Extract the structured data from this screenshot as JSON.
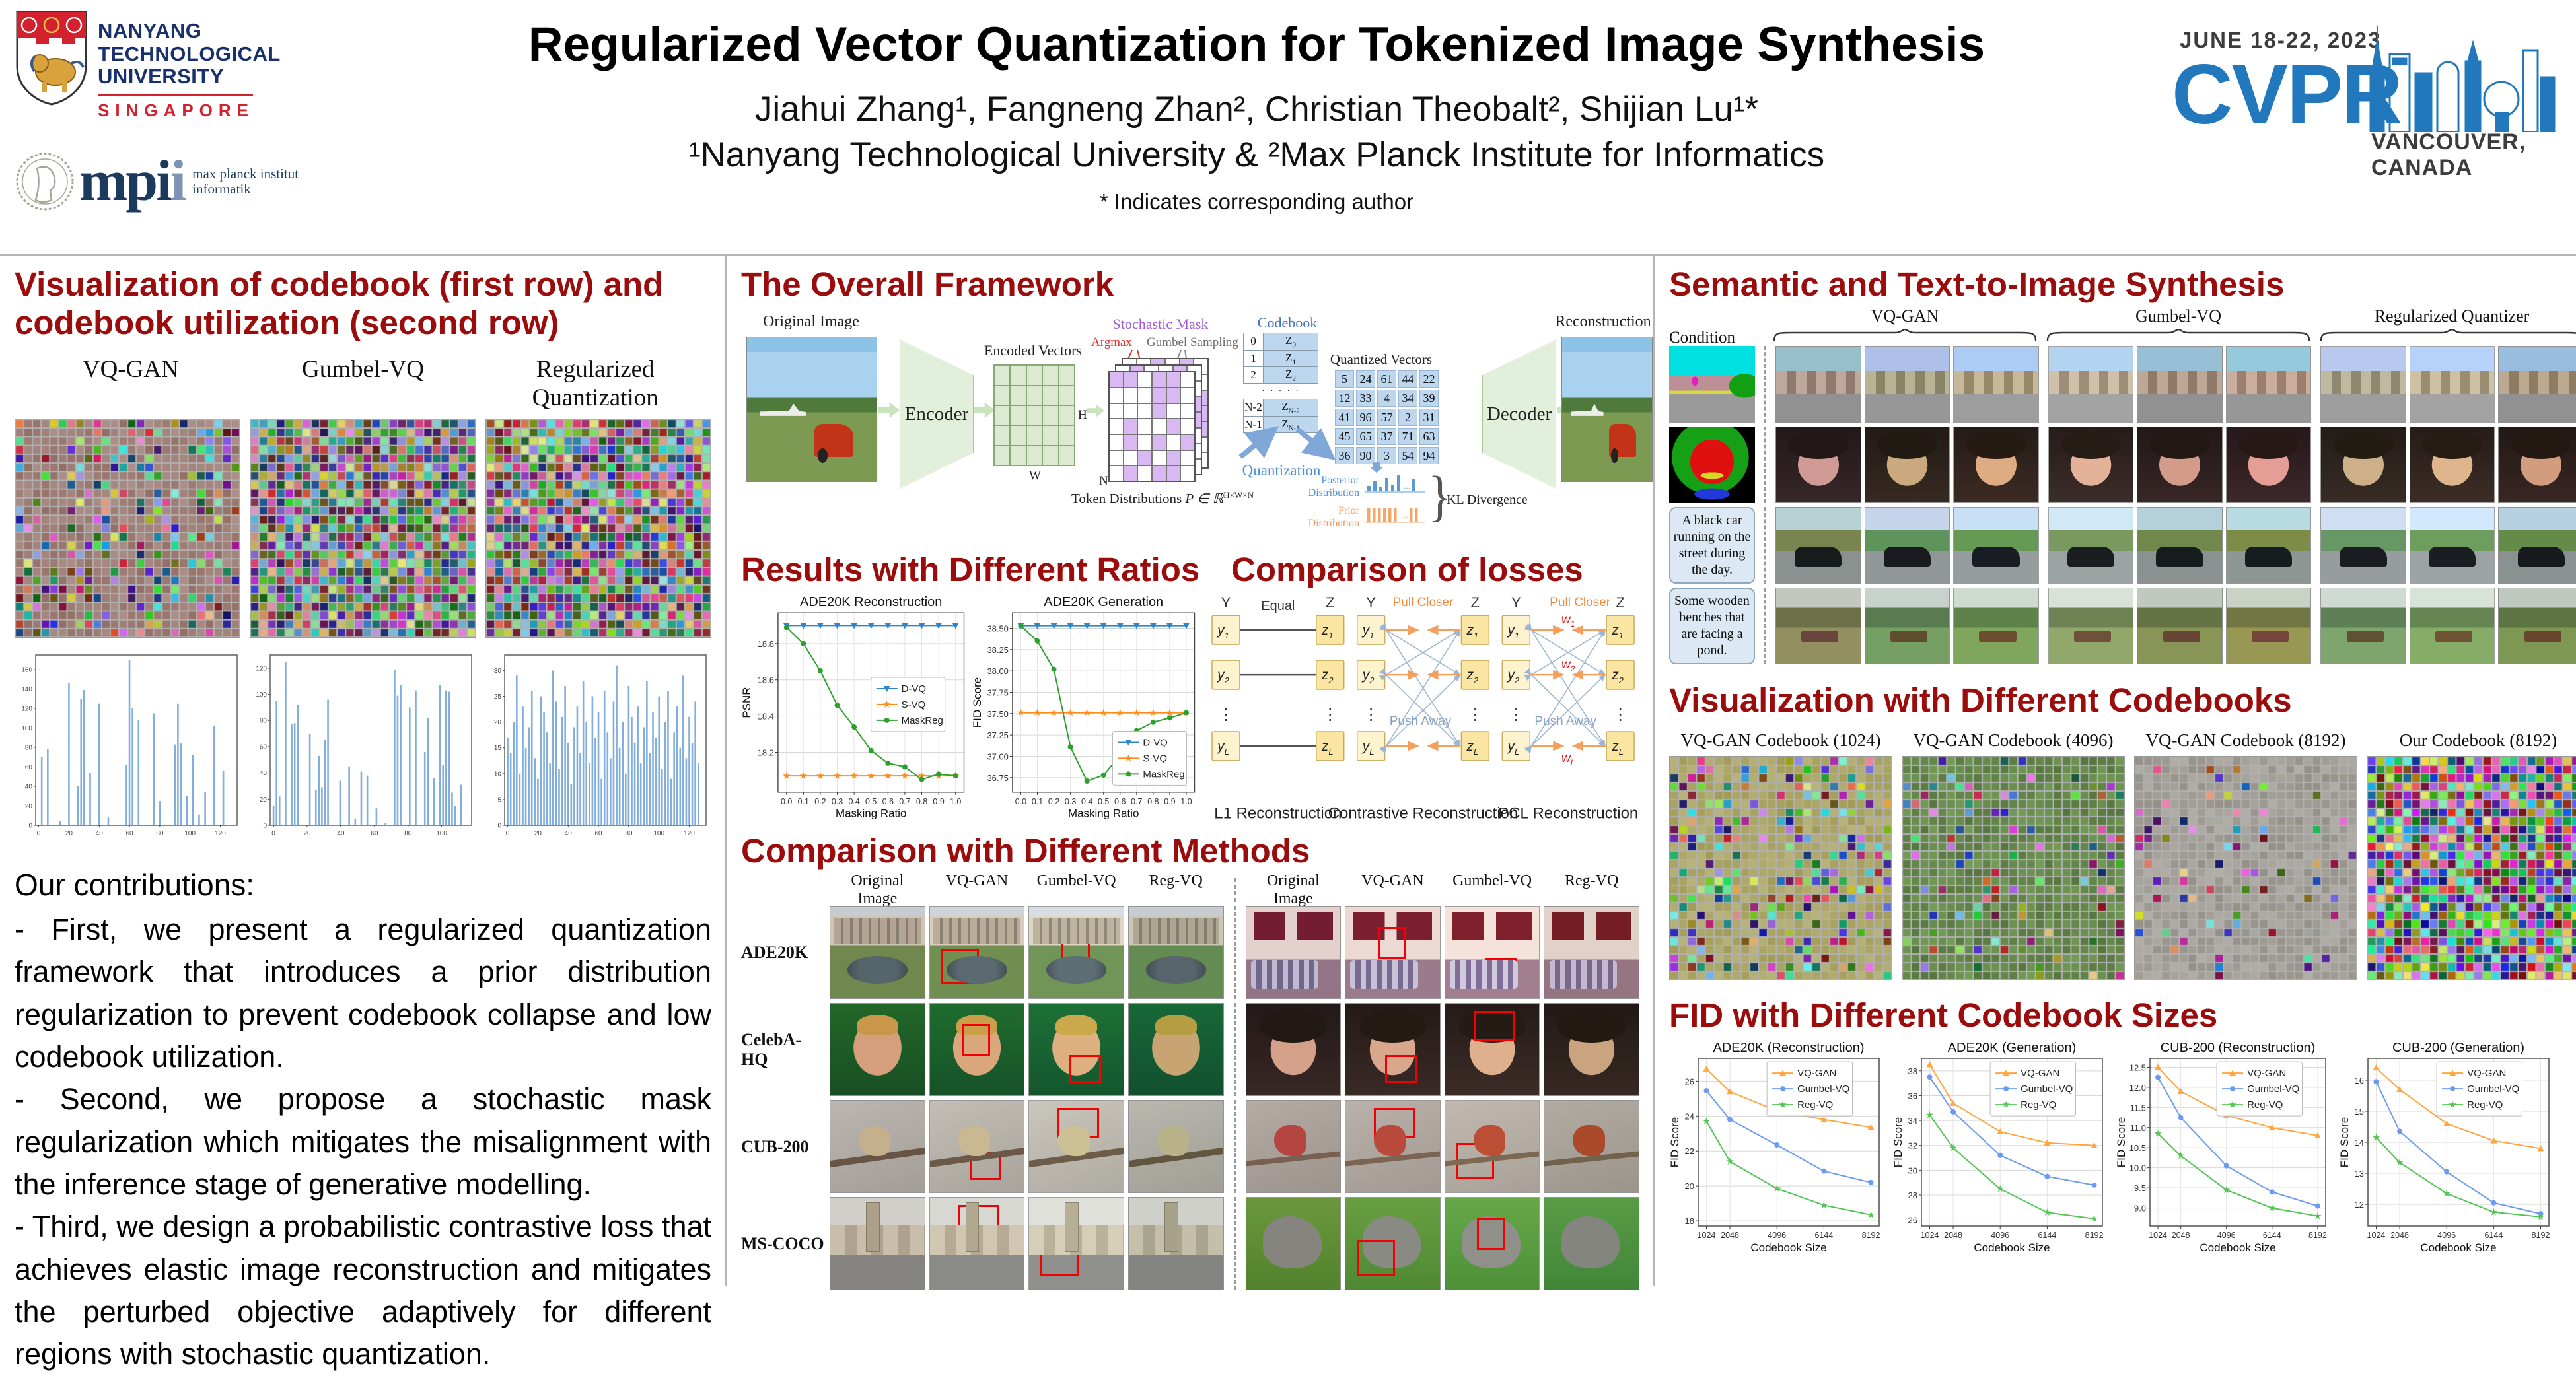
{
  "header": {
    "title": "Regularized Vector Quantization for Tokenized Image Synthesis",
    "authors": "Jiahui Zhang¹,  Fangneng Zhan²,  Christian Theobalt²,  Shijian Lu¹*",
    "affiliations": "¹Nanyang Technological University   &   ²Max Planck Institute for Informatics",
    "note": "* Indicates corresponding author",
    "ntu": {
      "lines": [
        "NANYANG",
        "TECHNOLOGICAL",
        "UNIVERSITY"
      ],
      "city": "SINGAPORE"
    },
    "mpi": {
      "abbr_main": "mpi",
      "abbr_lite": "i",
      "line1": "max planck institut",
      "line2": "informatik"
    },
    "cvpr": {
      "date": "JUNE 18-22, 2023",
      "name": "CVPR",
      "location": "VANCOUVER, CANADA"
    }
  },
  "left": {
    "heading": "Visualization of codebook (first row) and codebook utilization (second row)",
    "mosaic_labels": [
      "VQ-GAN",
      "Gumbel-VQ",
      "Regularized Quantization"
    ],
    "contributions_title": "Our contributions:",
    "contributions": [
      "- First, we present a regularized quantization framework that introduces a prior distribution regularization to prevent codebook collapse and low codebook utilization.",
      "- Second, we propose a stochastic mask regularization which mitigates the misalignment with the inference stage of generative modelling.",
      "- Third, we design a probabilistic contrastive loss that achieves elastic image reconstruction and mitigates the perturbed objective adaptively for different regions with stochastic quantization."
    ]
  },
  "framework": {
    "heading": "The Overall Framework",
    "original_label": "Original Image",
    "encoder_label": "Encoder",
    "encoded_label": "Encoded Vectors",
    "w_label": "W",
    "h_label": "H",
    "n_label": "N",
    "mask_label": "Stochastic Mask",
    "argmax_label": "Argmax",
    "gumbel_label": "Gumbel Sampling",
    "token_label": "Token Distributions",
    "token_formula": "P ∈ ℝ",
    "token_sup": "H×W×N",
    "codebook_title": "Codebook",
    "codebook_rows": [
      {
        "i": "0",
        "s": "0"
      },
      {
        "i": "1",
        "s": "1"
      },
      {
        "i": "2",
        "s": "2"
      },
      {
        "i": "N-2",
        "s": "N-2"
      },
      {
        "i": "N-1",
        "s": "N-1"
      }
    ],
    "codebook_dots": "· · · · ·",
    "z_base": "Z",
    "quantization_label": "Quantization",
    "quantized_label": "Quantized Vectors",
    "matrix": [
      [
        5,
        24,
        61,
        44,
        22
      ],
      [
        12,
        33,
        4,
        34,
        39
      ],
      [
        41,
        96,
        57,
        2,
        31
      ],
      [
        45,
        65,
        37,
        71,
        63
      ],
      [
        36,
        90,
        3,
        54,
        94
      ]
    ],
    "posterior_label": "Posterior Distribution",
    "prior_label": "Prior Distribution",
    "kl_label": "KL Divergence",
    "decoder_label": "Decoder",
    "recon_label": "Reconstruction"
  },
  "ratios": {
    "heading": "Results with Different Ratios"
  },
  "losses": {
    "heading": "Comparison of losses",
    "y_header": "Y",
    "z_header": "Z",
    "node_base_y": "y",
    "node_base_z": "z",
    "node_subs": [
      "1",
      "2",
      "⋮",
      "L"
    ],
    "diagrams": [
      {
        "caption": "L1 Reconstruction",
        "top": "Equal"
      },
      {
        "caption": "Contrastive Reconstruction",
        "pull": "Pull Closer",
        "push": "Push Away"
      },
      {
        "caption": "PCL Reconstruction",
        "pull": "Pull Closer",
        "push": "Push Away",
        "weight_base": "w",
        "weight_subs": [
          "1",
          "2",
          "L"
        ]
      }
    ]
  },
  "methods": {
    "heading": "Comparison with Different Methods",
    "col_headers": [
      "Original Image",
      "VQ-GAN",
      "Gumbel-VQ",
      "Reg-VQ"
    ],
    "rows": [
      {
        "label": "ADE20K",
        "left": "t-courtyard",
        "right": "t-bedroom"
      },
      {
        "label": "CelebA-HQ",
        "left": "t-face-man",
        "right": "t-face-woman"
      },
      {
        "label": "CUB-200",
        "left": "t-bird-tan",
        "right": "t-bird-red"
      },
      {
        "label": "MS-COCO",
        "left": "t-street",
        "right": "t-elephant"
      }
    ]
  },
  "semantic": {
    "heading": "Semantic and Text-to-Image Synthesis",
    "condition_label": "Condition",
    "groups": [
      "VQ-GAN",
      "Gumbel-VQ",
      "Regularized Quantizer"
    ],
    "rows": [
      {
        "cond": "map-city",
        "style": "t-city"
      },
      {
        "cond": "map-face",
        "style": "t-face-woman"
      },
      {
        "cond": "text",
        "text": "A black car running on the street during the day.",
        "style": "t-car"
      },
      {
        "cond": "text",
        "text": "Some wooden benches that are facing a pond.",
        "style": "t-pond"
      }
    ]
  },
  "codebooks": {
    "heading": "Visualization with Different Codebooks",
    "labels": [
      "VQ-GAN Codebook (1024)",
      "VQ-GAN Codebook (4096)",
      "VQ-GAN Codebook (8192)",
      "Our Codebook (8192)"
    ]
  },
  "fid": {
    "heading": "FID with Different Codebook Sizes"
  },
  "mosaics": [
    {
      "id": "cb-vqgan",
      "cols": 26,
      "rows": 25,
      "density": 0.3,
      "sat": 55,
      "bg": [
        12,
        18,
        55
      ],
      "seed": 7
    },
    {
      "id": "cb-gumbel",
      "cols": 26,
      "rows": 25,
      "density": 1.0,
      "sat": 45,
      "bg": null,
      "seed": 11
    },
    {
      "id": "cb-reg",
      "cols": 26,
      "rows": 25,
      "density": 1.0,
      "sat": 50,
      "bg": null,
      "seed": 23
    },
    {
      "id": "cbv-1024",
      "cols": 25,
      "rows": 26,
      "density": 0.32,
      "sat": 55,
      "bg": [
        55,
        30,
        55
      ],
      "seed": 31
    },
    {
      "id": "cbv-4096",
      "cols": 25,
      "rows": 26,
      "density": 0.16,
      "sat": 50,
      "bg": [
        95,
        30,
        42
      ],
      "seed": 41
    },
    {
      "id": "cbv-8192",
      "cols": 25,
      "rows": 26,
      "density": 0.08,
      "sat": 55,
      "bg": [
        40,
        6,
        62
      ],
      "seed": 51
    },
    {
      "id": "cbv-ours",
      "cols": 25,
      "rows": 26,
      "density": 1.0,
      "sat": 65,
      "bg": null,
      "seed": 61
    }
  ],
  "chart_data": [
    {
      "id": "util-vqgan",
      "type": "bar",
      "color": "#82aede",
      "ymax": 175,
      "yticks": [
        0,
        20,
        40,
        60,
        80,
        100,
        120,
        140,
        160
      ],
      "xticks": [
        0,
        20,
        40,
        60,
        80,
        100,
        120
      ],
      "xstep": 2,
      "values": [
        0,
        70,
        0,
        78,
        0,
        0,
        0,
        4,
        0,
        0,
        146,
        0,
        0,
        40,
        130,
        139,
        0,
        54,
        0,
        0,
        125,
        0,
        0,
        8,
        0,
        0,
        0,
        0,
        0,
        62,
        170,
        120,
        0,
        108,
        0,
        0,
        0,
        0,
        115,
        0,
        25,
        0,
        0,
        0,
        0,
        83,
        125,
        84,
        0,
        30,
        0,
        72,
        0,
        11,
        0,
        34,
        0,
        0,
        102,
        0,
        0,
        56,
        0,
        0
      ]
    },
    {
      "id": "util-gumbel",
      "type": "bar",
      "color": "#82aede",
      "ymax": 130,
      "yticks": [
        0,
        20,
        40,
        60,
        80,
        100,
        120
      ],
      "xticks": [
        0,
        20,
        40,
        60,
        80,
        100
      ],
      "xstep": 1.8,
      "values": [
        15,
        95,
        22,
        0,
        125,
        0,
        77,
        78,
        92,
        0,
        0,
        0,
        70,
        0,
        27,
        53,
        29,
        65,
        96,
        0,
        0,
        0,
        34,
        0,
        0,
        45,
        0,
        5,
        0,
        41,
        0,
        38,
        0,
        0,
        13,
        0,
        0,
        2,
        0,
        0,
        119,
        99,
        107,
        0,
        0,
        90,
        0,
        103,
        0,
        0,
        56,
        82,
        0,
        36,
        0,
        107,
        46,
        103,
        102,
        25,
        15,
        0,
        31,
        0
      ]
    },
    {
      "id": "util-regvq",
      "type": "bar",
      "color": "#82aede",
      "ymax": 33,
      "yticks": [
        0,
        5,
        10,
        15,
        20,
        25,
        30
      ],
      "xticks": [
        0,
        20,
        40,
        60,
        80,
        100,
        120
      ],
      "xstep": 2,
      "values": [
        17,
        14,
        20,
        29,
        10,
        23,
        15,
        19,
        26,
        13,
        9,
        25,
        22,
        18,
        12,
        30,
        24,
        11,
        21,
        27,
        16,
        8,
        19,
        23,
        14,
        28,
        20,
        12,
        25,
        17,
        22,
        9,
        26,
        18,
        13,
        24,
        31,
        15,
        20,
        10,
        27,
        21,
        16,
        23,
        12,
        19,
        28,
        14,
        22,
        17,
        25,
        11,
        20,
        26,
        9,
        18,
        23,
        15,
        29,
        13,
        21,
        16,
        24,
        12
      ]
    },
    {
      "id": "ratio-recon",
      "type": "line",
      "title": "ADE20K Reconstruction",
      "xlabel": "Masking Ratio",
      "ylabel": "PSNR",
      "x": [
        0.0,
        0.1,
        0.2,
        0.3,
        0.4,
        0.5,
        0.6,
        0.7,
        0.8,
        0.9,
        1.0
      ],
      "xtick_labels": [
        "0.0",
        "0.1",
        "0.2",
        "0.3",
        "0.4",
        "0.5",
        "0.6",
        "0.7",
        "0.8",
        "0.9",
        "1.0"
      ],
      "ylim": [
        17.98,
        18.97
      ],
      "yticks": [
        18.2,
        18.4,
        18.6,
        18.8
      ],
      "ytick_labels": [
        "18.2",
        "18.4",
        "18.6",
        "18.8"
      ],
      "legend": [
        0.5,
        0.36
      ],
      "ml": 56,
      "series": [
        {
          "name": "D-VQ",
          "color": "#2e86c8",
          "marker": "tri-down",
          "values": [
            18.9,
            18.9,
            18.9,
            18.9,
            18.9,
            18.9,
            18.9,
            18.9,
            18.9,
            18.9,
            18.9
          ]
        },
        {
          "name": "S-VQ",
          "color": "#ff8c1a",
          "marker": "star",
          "values": [
            18.07,
            18.07,
            18.07,
            18.07,
            18.07,
            18.07,
            18.07,
            18.07,
            18.07,
            18.07,
            18.07
          ]
        },
        {
          "name": "MaskReg",
          "color": "#2ca02c",
          "marker": "circle",
          "values": [
            18.89,
            18.8,
            18.65,
            18.46,
            18.34,
            18.21,
            18.14,
            18.12,
            18.05,
            18.08,
            18.07
          ]
        }
      ]
    },
    {
      "id": "ratio-gen",
      "type": "line",
      "title": "ADE20K Generation",
      "xlabel": "Masking Ratio",
      "ylabel": "FID Score",
      "x": [
        0.0,
        0.1,
        0.2,
        0.3,
        0.4,
        0.5,
        0.6,
        0.7,
        0.8,
        0.9,
        1.0
      ],
      "xtick_labels": [
        "0.0",
        "0.1",
        "0.2",
        "0.3",
        "0.4",
        "0.5",
        "0.6",
        "0.7",
        "0.8",
        "0.9",
        "1.0"
      ],
      "ylim": [
        36.58,
        38.68
      ],
      "yticks": [
        36.75,
        37.0,
        37.25,
        37.5,
        37.75,
        38.0,
        38.25,
        38.5
      ],
      "ytick_labels": [
        "36.75",
        "37.00",
        "37.25",
        "37.50",
        "37.75",
        "38.00",
        "38.25",
        "38.50"
      ],
      "legend": [
        0.55,
        0.66
      ],
      "ml": 62,
      "series": [
        {
          "name": "D-VQ",
          "color": "#2e86c8",
          "marker": "tri-down",
          "values": [
            38.53,
            38.53,
            38.53,
            38.53,
            38.53,
            38.53,
            38.53,
            38.53,
            38.53,
            38.53,
            38.53
          ]
        },
        {
          "name": "S-VQ",
          "color": "#ff8c1a",
          "marker": "star",
          "values": [
            37.51,
            37.51,
            37.51,
            37.51,
            37.51,
            37.51,
            37.51,
            37.51,
            37.51,
            37.51,
            37.51
          ]
        },
        {
          "name": "MaskReg",
          "color": "#2ca02c",
          "marker": "circle",
          "values": [
            38.53,
            38.35,
            38.02,
            37.11,
            36.71,
            36.78,
            37.01,
            37.3,
            37.4,
            37.45,
            37.51
          ]
        }
      ]
    },
    {
      "id": "fid-ade-recon",
      "type": "line",
      "title": "ADE20K (Reconstruction)",
      "xlabel": "Codebook Size",
      "ylabel": "FID Score",
      "x": [
        1024,
        2048,
        4096,
        6144,
        8192
      ],
      "xtick_labels": [
        "1024",
        "2048",
        "4096",
        "6144",
        "8192"
      ],
      "ylim": [
        17.7,
        27.3
      ],
      "yticks": [
        18,
        20,
        22,
        24,
        26
      ],
      "ytick_labels": [
        "18",
        "20",
        "22",
        "24",
        "26"
      ],
      "legend": [
        0.38,
        0.02
      ],
      "ml": 44,
      "series": [
        {
          "name": "VQ-GAN",
          "color": "#ffa63e",
          "marker": "tri-up",
          "values": [
            26.7,
            25.4,
            24.3,
            23.8,
            23.35
          ]
        },
        {
          "name": "Gumbel-VQ",
          "color": "#6b9bf0",
          "marker": "circle",
          "values": [
            25.45,
            23.8,
            22.35,
            20.85,
            20.2
          ]
        },
        {
          "name": "Reg-VQ",
          "color": "#52c552",
          "marker": "star",
          "values": [
            23.7,
            21.4,
            19.85,
            18.9,
            18.35
          ]
        }
      ]
    },
    {
      "id": "fid-ade-gen",
      "type": "line",
      "title": "ADE20K (Generation)",
      "xlabel": "Codebook Size",
      "ylabel": "FID Score",
      "x": [
        1024,
        2048,
        4096,
        6144,
        8192
      ],
      "xtick_labels": [
        "1024",
        "2048",
        "4096",
        "6144",
        "8192"
      ],
      "ylim": [
        25.5,
        39.0
      ],
      "yticks": [
        26,
        28,
        30,
        32,
        34,
        36,
        38
      ],
      "ytick_labels": [
        "26",
        "28",
        "30",
        "32",
        "34",
        "36",
        "38"
      ],
      "legend": [
        0.38,
        0.02
      ],
      "ml": 44,
      "series": [
        {
          "name": "VQ-GAN",
          "color": "#ffa63e",
          "marker": "tri-up",
          "values": [
            38.5,
            35.4,
            33.1,
            32.2,
            32.0
          ]
        },
        {
          "name": "Gumbel-VQ",
          "color": "#6b9bf0",
          "marker": "circle",
          "values": [
            37.5,
            34.7,
            31.2,
            29.5,
            28.8
          ]
        },
        {
          "name": "Reg-VQ",
          "color": "#52c552",
          "marker": "star",
          "values": [
            34.45,
            31.8,
            28.5,
            26.6,
            26.1
          ]
        }
      ]
    },
    {
      "id": "fid-cub-recon",
      "type": "line",
      "title": "CUB-200 (Reconstruction)",
      "xlabel": "Codebook Size",
      "ylabel": "FID Score",
      "x": [
        1024,
        2048,
        4096,
        6144,
        8192
      ],
      "xtick_labels": [
        "1024",
        "2048",
        "4096",
        "6144",
        "8192"
      ],
      "ylim": [
        8.55,
        12.72
      ],
      "yticks": [
        9.0,
        9.5,
        10.0,
        10.5,
        11.0,
        11.5,
        12.0,
        12.5
      ],
      "ytick_labels": [
        "9.0",
        "9.5",
        "10.0",
        "10.5",
        "11.0",
        "11.5",
        "12.0",
        "12.5"
      ],
      "legend": [
        0.38,
        0.02
      ],
      "ml": 52,
      "series": [
        {
          "name": "VQ-GAN",
          "color": "#ffa63e",
          "marker": "tri-up",
          "values": [
            12.5,
            11.9,
            11.3,
            11.0,
            10.8
          ]
        },
        {
          "name": "Gumbel-VQ",
          "color": "#6b9bf0",
          "marker": "circle",
          "values": [
            12.25,
            11.25,
            10.05,
            9.4,
            9.05
          ]
        },
        {
          "name": "Reg-VQ",
          "color": "#52c552",
          "marker": "star",
          "values": [
            10.85,
            10.3,
            9.45,
            9.0,
            8.8
          ]
        }
      ]
    },
    {
      "id": "fid-cub-gen",
      "type": "line",
      "title": "CUB-200 (Generation)",
      "xlabel": "Codebook Size",
      "ylabel": "FID Score",
      "x": [
        1024,
        2048,
        4096,
        6144,
        8192
      ],
      "xtick_labels": [
        "1024",
        "2048",
        "4096",
        "6144",
        "8192"
      ],
      "ylim": [
        11.3,
        16.7
      ],
      "yticks": [
        12,
        13,
        14,
        15,
        16
      ],
      "ytick_labels": [
        "12",
        "13",
        "14",
        "15",
        "16"
      ],
      "legend": [
        0.38,
        0.02
      ],
      "ml": 44,
      "series": [
        {
          "name": "VQ-GAN",
          "color": "#ffa63e",
          "marker": "tri-up",
          "values": [
            16.4,
            15.7,
            14.6,
            14.05,
            13.8
          ]
        },
        {
          "name": "Gumbel-VQ",
          "color": "#6b9bf0",
          "marker": "circle",
          "values": [
            15.95,
            14.35,
            13.05,
            12.05,
            11.7
          ]
        },
        {
          "name": "Reg-VQ",
          "color": "#52c552",
          "marker": "star",
          "values": [
            14.15,
            13.35,
            12.35,
            11.75,
            11.6
          ]
        }
      ]
    }
  ]
}
